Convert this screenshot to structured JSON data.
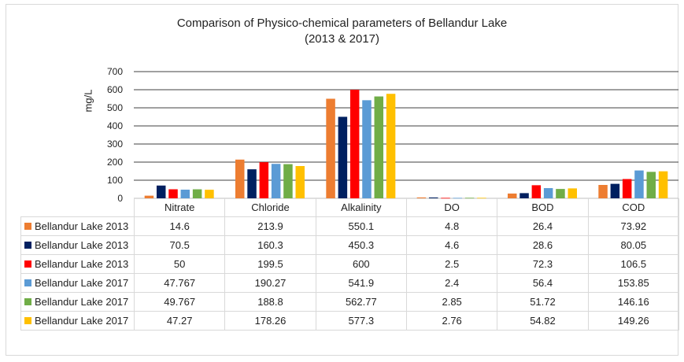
{
  "chart_data": {
    "type": "bar",
    "title": "Comparison of Physico-chemical parameters of Bellandur Lake",
    "subtitle": "(2013 & 2017)",
    "ylabel": "mg/L",
    "xlabel": "",
    "ylim": [
      0,
      700
    ],
    "yticks": [
      "700",
      "600",
      "500",
      "400",
      "300",
      "200",
      "100",
      "0"
    ],
    "ytick_values": [
      700,
      600,
      500,
      400,
      300,
      200,
      100,
      0
    ],
    "grid": true,
    "legend": "data-table",
    "categories": [
      "Nitrate",
      "Chloride",
      "Alkalinity",
      "DO",
      "BOD",
      "COD"
    ],
    "series": [
      {
        "name": "Bellandur Lake 2013",
        "color": "#ed7d31",
        "labels": [
          "14.6",
          "213.9",
          "550.1",
          "4.8",
          "26.4",
          "73.92"
        ],
        "values": [
          14.6,
          213.9,
          550.1,
          4.8,
          26.4,
          73.92
        ]
      },
      {
        "name": "Bellandur Lake 2013",
        "color": "#002060",
        "labels": [
          "70.5",
          "160.3",
          "450.3",
          "4.6",
          "28.6",
          "80.05"
        ],
        "values": [
          70.5,
          160.3,
          450.3,
          4.6,
          28.6,
          80.05
        ]
      },
      {
        "name": "Bellandur Lake 2013",
        "color": "#ff0000",
        "labels": [
          "50",
          "199.5",
          "600",
          "2.5",
          "72.3",
          "106.5"
        ],
        "values": [
          50,
          199.5,
          600,
          2.5,
          72.3,
          106.5
        ]
      },
      {
        "name": "Bellandur Lake 2017",
        "color": "#5b9bd5",
        "labels": [
          "47.767",
          "190.27",
          "541.9",
          "2.4",
          "56.4",
          "153.85"
        ],
        "values": [
          47.767,
          190.27,
          541.9,
          2.4,
          56.4,
          153.85
        ]
      },
      {
        "name": "Bellandur Lake 2017",
        "color": "#70ad47",
        "labels": [
          "49.767",
          "188.8",
          "562.77",
          "2.85",
          "51.72",
          "146.16"
        ],
        "values": [
          49.767,
          188.8,
          562.77,
          2.85,
          51.72,
          146.16
        ]
      },
      {
        "name": "Bellandur Lake 2017",
        "color": "#ffc000",
        "labels": [
          "47.27",
          "178.26",
          "577.3",
          "2.76",
          "54.82",
          "149.26"
        ],
        "values": [
          47.27,
          178.26,
          577.3,
          2.76,
          54.82,
          149.26
        ]
      }
    ]
  }
}
